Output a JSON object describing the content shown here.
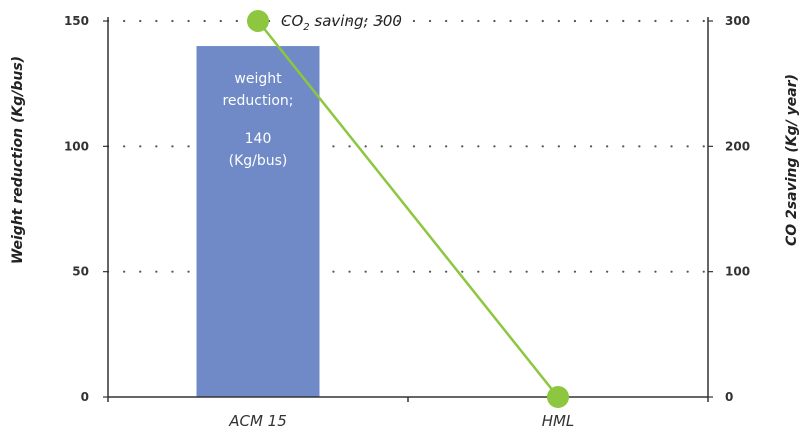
{
  "chart_data": {
    "type": "bar",
    "categories": [
      "ACM 15",
      "HML"
    ],
    "series": [
      {
        "name": "weight reduction",
        "chart_type": "bar",
        "axis": "left",
        "values": [
          140,
          0
        ],
        "color": "#6f8ac6"
      },
      {
        "name": "CO2 saving",
        "chart_type": "line",
        "axis": "right",
        "values": [
          300,
          0
        ],
        "color": "#8dc63f"
      }
    ],
    "ylabel": "Weight reduction (Kg/bus)",
    "y2label": "CO 2saving (Kg/ year)",
    "ylim": [
      0,
      150
    ],
    "y2lim": [
      0,
      300
    ],
    "yticks": [
      "0",
      "50",
      "100",
      "150"
    ],
    "y2ticks": [
      "0",
      "100",
      "200",
      "300"
    ],
    "grid": "dotted-horizontal",
    "annotations": {
      "bar_label_line1": "weight",
      "bar_label_line2": "reduction;",
      "bar_label_value": "140",
      "bar_label_unit": "(Kg/bus)",
      "point_label_prefix": "CO",
      "point_label_sub": "2",
      "point_label_suffix": " saving; 300"
    }
  }
}
